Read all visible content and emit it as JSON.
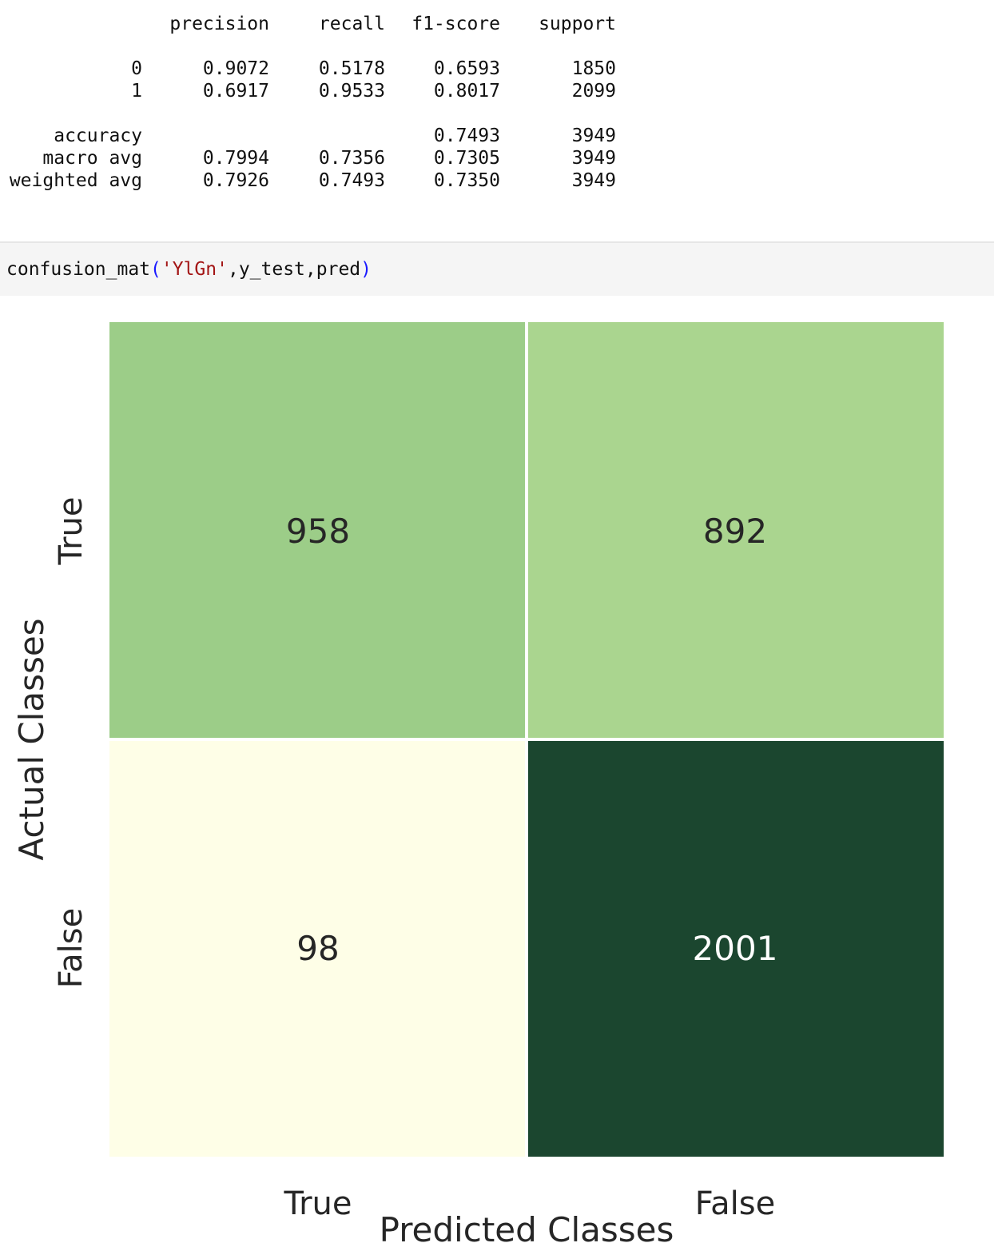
{
  "report": {
    "headers": [
      "precision",
      "recall",
      "f1-score",
      "support"
    ],
    "rows": [
      {
        "label": "0",
        "precision": "0.9072",
        "recall": "0.5178",
        "f1": "0.6593",
        "support": "1850"
      },
      {
        "label": "1",
        "precision": "0.6917",
        "recall": "0.9533",
        "f1": "0.8017",
        "support": "2099"
      },
      {
        "label": "accuracy",
        "precision": "",
        "recall": "",
        "f1": "0.7493",
        "support": "3949"
      },
      {
        "label": "macro avg",
        "precision": "0.7994",
        "recall": "0.7356",
        "f1": "0.7305",
        "support": "3949"
      },
      {
        "label": "weighted avg",
        "precision": "0.7926",
        "recall": "0.7493",
        "f1": "0.7350",
        "support": "3949"
      }
    ]
  },
  "code": {
    "func": "confusion_mat",
    "open_paren": "(",
    "arg_str": "'YlGn'",
    "rest": ",y_test,pred",
    "close_paren": ")"
  },
  "chart_data": {
    "type": "heatmap",
    "title": "",
    "xlabel": "Predicted Classes",
    "ylabel": "Actual Classes",
    "x_categories": [
      "True",
      "False"
    ],
    "y_categories": [
      "True",
      "False"
    ],
    "values": [
      [
        958,
        892
      ],
      [
        98,
        2001
      ]
    ],
    "colormap": "YlGn",
    "cell_colors": [
      [
        "#9ccd88",
        "#aad58f"
      ],
      [
        "#fefee7",
        "#1b462f"
      ]
    ],
    "annotation_colors": [
      [
        "#262626",
        "#262626"
      ],
      [
        "#262626",
        "#ffffff"
      ]
    ],
    "colorbar": false
  }
}
